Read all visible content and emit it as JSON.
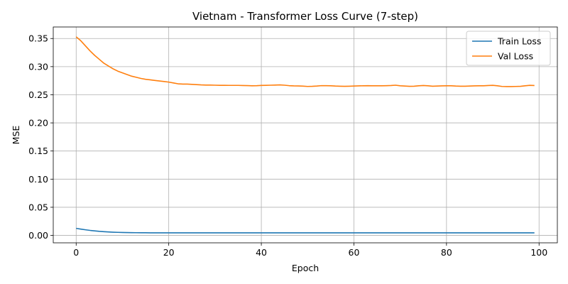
{
  "chart_data": {
    "type": "line",
    "title": "Vietnam - Transformer Loss Curve (7-step)",
    "xlabel": "Epoch",
    "ylabel": "MSE",
    "xlim": [
      -4.95,
      103.95
    ],
    "ylim": [
      -0.0132,
      0.3705
    ],
    "xticks": [
      0,
      20,
      40,
      60,
      80,
      100
    ],
    "yticks": [
      0.0,
      0.05,
      0.1,
      0.15,
      0.2,
      0.25,
      0.3,
      0.35
    ],
    "xtick_labels": [
      "0",
      "20",
      "40",
      "60",
      "80",
      "100"
    ],
    "ytick_labels": [
      "0.00",
      "0.05",
      "0.10",
      "0.15",
      "0.20",
      "0.25",
      "0.30",
      "0.35"
    ],
    "grid": true,
    "legend_position": "top-right",
    "x": [
      0,
      1,
      2,
      3,
      4,
      5,
      6,
      7,
      8,
      9,
      10,
      11,
      12,
      13,
      14,
      15,
      16,
      17,
      18,
      19,
      20,
      21,
      22,
      23,
      24,
      25,
      26,
      27,
      28,
      29,
      30,
      31,
      32,
      33,
      34,
      35,
      36,
      37,
      38,
      39,
      40,
      41,
      42,
      43,
      44,
      45,
      46,
      47,
      48,
      49,
      50,
      51,
      52,
      53,
      54,
      55,
      56,
      57,
      58,
      59,
      60,
      61,
      62,
      63,
      64,
      65,
      66,
      67,
      68,
      69,
      70,
      71,
      72,
      73,
      74,
      75,
      76,
      77,
      78,
      79,
      80,
      81,
      82,
      83,
      84,
      85,
      86,
      87,
      88,
      89,
      90,
      91,
      92,
      93,
      94,
      95,
      96,
      97,
      98,
      99
    ],
    "series": [
      {
        "name": "Train Loss",
        "color": "#1f77b4",
        "values": [
          0.0125,
          0.0112,
          0.01,
          0.0089,
          0.008,
          0.0072,
          0.0066,
          0.0061,
          0.0057,
          0.0054,
          0.0052,
          0.005,
          0.0049,
          0.0048,
          0.0047,
          0.0047,
          0.0046,
          0.0046,
          0.0046,
          0.0045,
          0.0045,
          0.0045,
          0.0045,
          0.0045,
          0.0045,
          0.0045,
          0.0045,
          0.0045,
          0.0045,
          0.0045,
          0.0045,
          0.0045,
          0.0045,
          0.0045,
          0.0045,
          0.0045,
          0.0045,
          0.0045,
          0.0045,
          0.0045,
          0.0045,
          0.0045,
          0.0045,
          0.0045,
          0.0045,
          0.0045,
          0.0045,
          0.0045,
          0.0045,
          0.0045,
          0.0045,
          0.0045,
          0.0045,
          0.0045,
          0.0045,
          0.0045,
          0.0045,
          0.0045,
          0.0045,
          0.0045,
          0.0045,
          0.0045,
          0.0045,
          0.0045,
          0.0045,
          0.0045,
          0.0045,
          0.0045,
          0.0045,
          0.0045,
          0.0045,
          0.0045,
          0.0045,
          0.0045,
          0.0045,
          0.0045,
          0.0045,
          0.0045,
          0.0045,
          0.0045,
          0.0045,
          0.0045,
          0.0045,
          0.0045,
          0.0045,
          0.0045,
          0.0045,
          0.0045,
          0.0045,
          0.0045,
          0.0045,
          0.0045,
          0.0045,
          0.0045,
          0.0045,
          0.0045,
          0.0045,
          0.0045,
          0.0045,
          0.0045
        ]
      },
      {
        "name": "Val Loss",
        "color": "#ff7f0e",
        "values": [
          0.353,
          0.346,
          0.337,
          0.328,
          0.32,
          0.313,
          0.306,
          0.301,
          0.296,
          0.292,
          0.289,
          0.286,
          0.283,
          0.281,
          0.279,
          0.2775,
          0.2765,
          0.2755,
          0.2745,
          0.2735,
          0.2725,
          0.271,
          0.2695,
          0.269,
          0.269,
          0.2685,
          0.268,
          0.2675,
          0.2672,
          0.2672,
          0.267,
          0.2668,
          0.2668,
          0.2667,
          0.2667,
          0.2667,
          0.2665,
          0.2663,
          0.266,
          0.2662,
          0.2666,
          0.2668,
          0.267,
          0.2672,
          0.2675,
          0.267,
          0.2662,
          0.2658,
          0.2656,
          0.2654,
          0.2648,
          0.265,
          0.2655,
          0.2662,
          0.2662,
          0.266,
          0.2655,
          0.2652,
          0.265,
          0.2652,
          0.2655,
          0.2658,
          0.266,
          0.2662,
          0.266,
          0.266,
          0.266,
          0.2662,
          0.2665,
          0.267,
          0.266,
          0.2655,
          0.265,
          0.2652,
          0.266,
          0.2665,
          0.266,
          0.2652,
          0.2655,
          0.2658,
          0.266,
          0.266,
          0.2655,
          0.2652,
          0.2652,
          0.2655,
          0.2658,
          0.266,
          0.266,
          0.2665,
          0.2668,
          0.266,
          0.2648,
          0.2645,
          0.2645,
          0.2648,
          0.265,
          0.266,
          0.2668,
          0.2665
        ]
      }
    ]
  }
}
